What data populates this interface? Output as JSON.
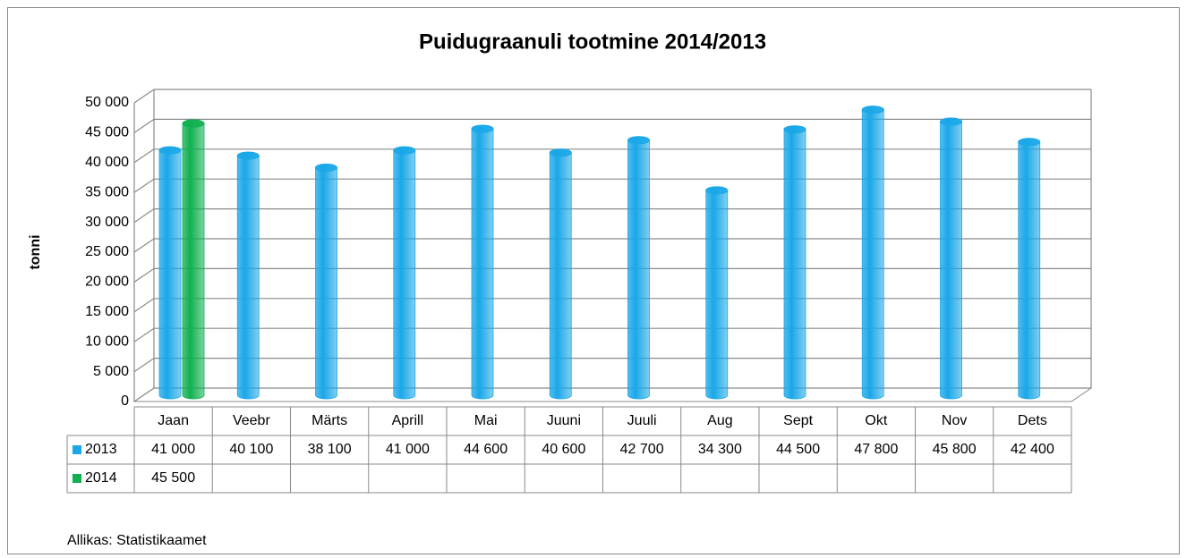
{
  "chart_data": {
    "type": "bar",
    "title": "Puidugraanuli tootmine 2014/2013",
    "y_label": "tonni",
    "source": "Allikas: Statistikaamet",
    "categories": [
      "Jaan",
      "Veebr",
      "Märts",
      "Aprill",
      "Mai",
      "Juuni",
      "Juuli",
      "Aug",
      "Sept",
      "Okt",
      "Nov",
      "Dets"
    ],
    "series": [
      {
        "name": "2013",
        "color": "#1aa7e8",
        "values": [
          41000,
          40100,
          38100,
          41000,
          44600,
          40600,
          42700,
          34300,
          44500,
          47800,
          45800,
          42400
        ],
        "value_labels": [
          "41 000",
          "40 100",
          "38 100",
          "41 000",
          "44 600",
          "40 600",
          "42 700",
          "34 300",
          "44 500",
          "47 800",
          "45 800",
          "42 400"
        ]
      },
      {
        "name": "2014",
        "color": "#10b050",
        "values": [
          45500,
          null,
          null,
          null,
          null,
          null,
          null,
          null,
          null,
          null,
          null,
          null
        ],
        "value_labels": [
          "45 500",
          null,
          null,
          null,
          null,
          null,
          null,
          null,
          null,
          null,
          null,
          null
        ]
      }
    ],
    "ylim": [
      0,
      50000
    ],
    "yticks": [
      0,
      {
        "value": 5000,
        "label": "5 000"
      },
      {
        "value": 10000,
        "label": "10 000"
      },
      {
        "value": 15000,
        "label": "15 000"
      },
      {
        "value": 20000,
        "label": "20 000"
      },
      {
        "value": 25000,
        "label": "25 000"
      },
      {
        "value": 30000,
        "label": "30 000"
      },
      {
        "value": 35000,
        "label": "35 000"
      },
      {
        "value": 40000,
        "label": "40 000"
      },
      {
        "value": 45000,
        "label": "45 000"
      },
      {
        "value": 50000,
        "label": "50 000"
      }
    ],
    "grid": true,
    "data_table": true
  }
}
